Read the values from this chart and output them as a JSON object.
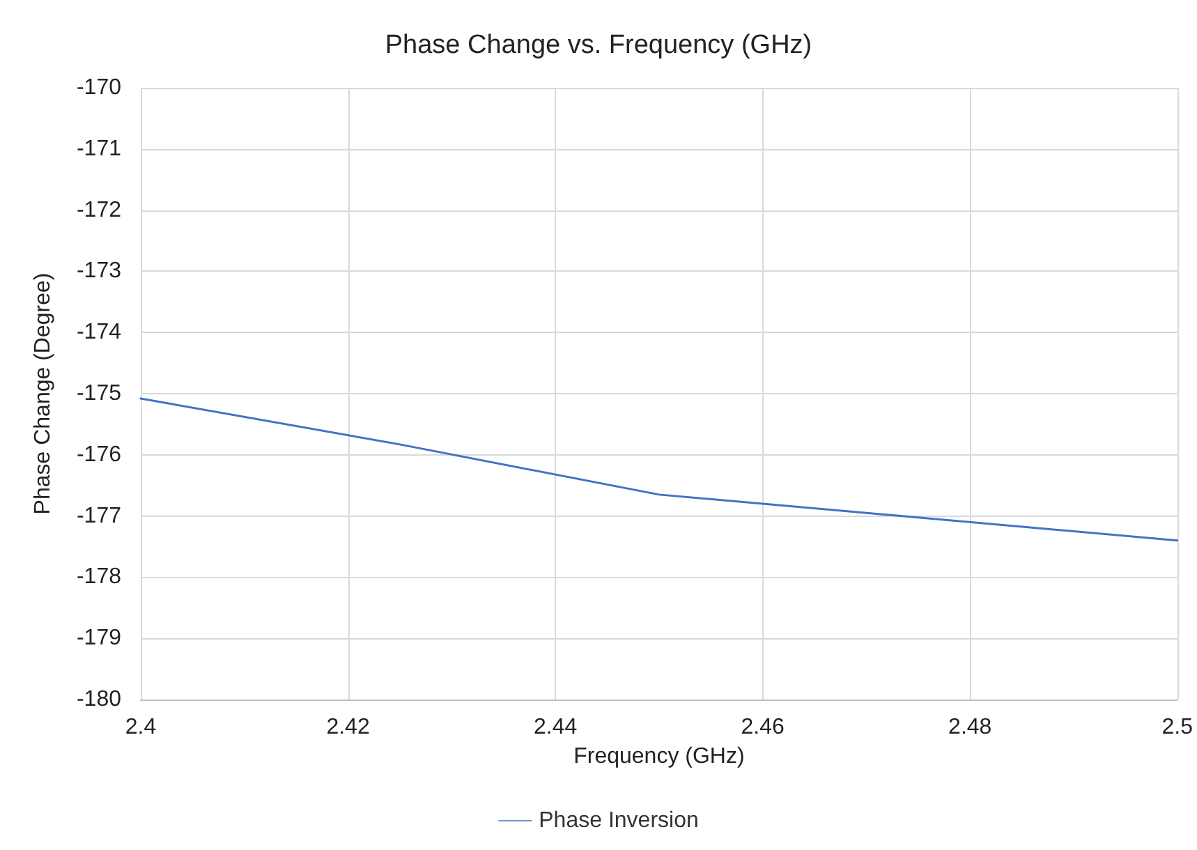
{
  "chart_data": {
    "type": "line",
    "title": "Phase Change vs. Frequency (GHz)",
    "xlabel": "Frequency (GHz)",
    "ylabel": "Phase Change (Degree)",
    "x": [
      2.4,
      2.425,
      2.45,
      2.5
    ],
    "series": [
      {
        "name": "Phase Inversion",
        "color": "#4472c4",
        "values": [
          -175.08,
          -175.83,
          -176.65,
          -177.4
        ]
      }
    ],
    "xlim": [
      2.4,
      2.5
    ],
    "xticks": [
      2.4,
      2.42,
      2.44,
      2.46,
      2.48,
      2.5
    ],
    "ylim": [
      -180,
      -170
    ],
    "yticks": [
      -180,
      -179,
      -178,
      -177,
      -176,
      -175,
      -174,
      -173,
      -172,
      -171,
      -170
    ],
    "grid": true,
    "legend": "bottom",
    "marker": "none",
    "line_style": "solid"
  }
}
